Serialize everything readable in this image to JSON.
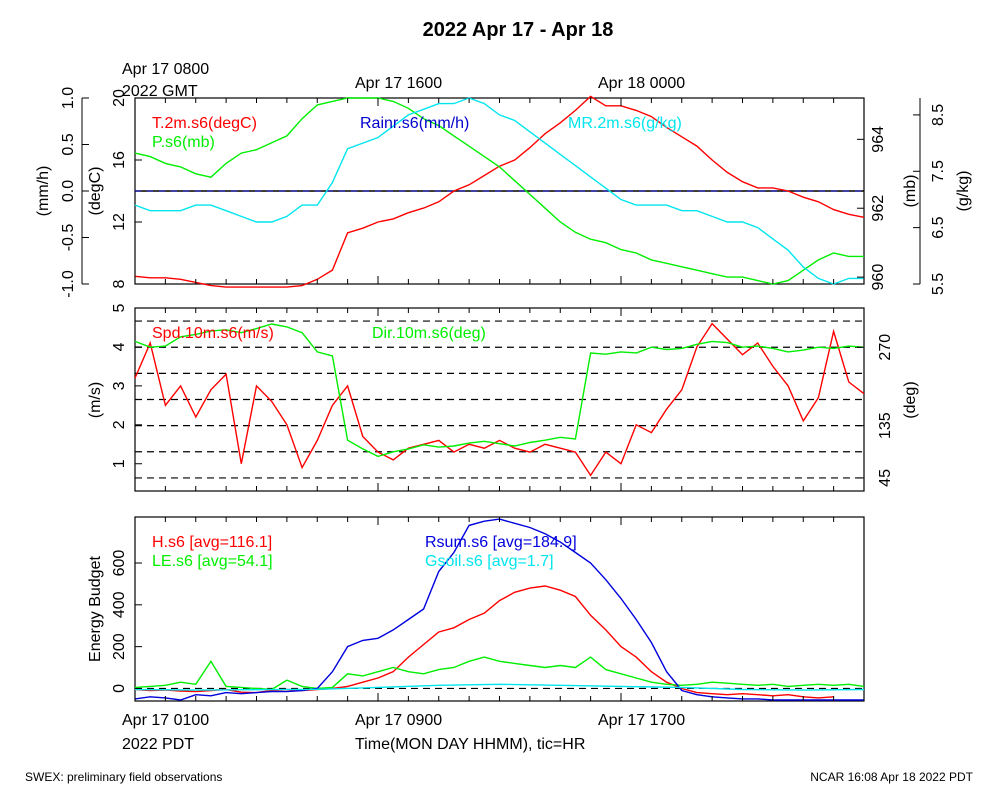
{
  "page": {
    "title": "2022 Apr 17 - Apr 18",
    "top_time_labels": [
      "Apr 17 0800",
      "2022 GMT",
      "Apr 17 1600",
      "Apr 18 0000"
    ],
    "bottom_time_labels": [
      "Apr 17 0100",
      "2022 PDT",
      "Apr 17 0900",
      "Apr 17 1700"
    ],
    "x_axis_title": "Time(MON DAY HHMM), tic=HR",
    "footer_left": "SWEX: preliminary field observations",
    "footer_right": "NCAR 16:08 Apr 18 2022 PDT"
  },
  "chart_data": [
    {
      "type": "line",
      "panel": "meteorology",
      "x_unit": "hours since Apr 17 0100 PDT",
      "xlim": [
        0,
        24
      ],
      "axes": {
        "rain": {
          "label": "(mm/h)",
          "ticks": [
            "-1.0",
            "-0.5",
            "0.0",
            "0.5",
            "1.0"
          ],
          "ylim": [
            -1.0,
            1.0
          ]
        },
        "temp": {
          "label": "(degC)",
          "ticks": [
            "8",
            "12",
            "16",
            "20"
          ],
          "ylim": [
            8,
            20
          ]
        },
        "pres": {
          "label": "(mb)",
          "ticks": [
            "960",
            "962",
            "964"
          ],
          "ylim": [
            959.8,
            965.2
          ]
        },
        "mr": {
          "label": "(g/kg)",
          "ticks": [
            "5.5",
            "6.5",
            "7.5",
            "8.5"
          ],
          "ylim": [
            5.5,
            8.8
          ]
        }
      },
      "series": [
        {
          "name": "T.2m.s6(degC)",
          "color": "#ff0000",
          "axis": "temp",
          "x": [
            0,
            0.5,
            1,
            1.5,
            2,
            2.5,
            3,
            3.5,
            4,
            4.5,
            5,
            5.5,
            6,
            6.5,
            7,
            7.5,
            8,
            8.5,
            9,
            9.5,
            10,
            10.5,
            11,
            11.5,
            12,
            12.5,
            13,
            13.5,
            14,
            14.5,
            15,
            15.5,
            16,
            16.5,
            17,
            17.5,
            18,
            18.5,
            19,
            19.5,
            20,
            20.5,
            21,
            21.5,
            22,
            22.5,
            23,
            23.5,
            24
          ],
          "values": [
            8.5,
            8.4,
            8.4,
            8.3,
            8.1,
            7.9,
            7.8,
            7.8,
            7.8,
            7.8,
            7.8,
            7.9,
            8.3,
            8.9,
            11.3,
            11.6,
            12.0,
            12.2,
            12.6,
            12.9,
            13.3,
            14.0,
            14.4,
            15.0,
            15.6,
            16.0,
            16.8,
            17.7,
            18.4,
            19.2,
            20.1,
            19.5,
            19.5,
            19.2,
            18.8,
            18.1,
            17.5,
            16.9,
            16.0,
            15.2,
            14.6,
            14.2,
            14.2,
            14.0,
            13.6,
            13.3,
            12.8,
            12.5,
            12.3
          ]
        },
        {
          "name": "P.s6(mb)",
          "color": "#00ee00",
          "axis": "pres",
          "x": [
            0,
            0.5,
            1,
            1.5,
            2,
            2.5,
            3,
            3.5,
            4,
            4.5,
            5,
            5.5,
            6,
            6.5,
            7,
            7.5,
            8,
            8.5,
            9,
            9.5,
            10,
            10.5,
            11,
            11.5,
            12,
            12.5,
            13,
            13.5,
            14,
            14.5,
            15,
            15.5,
            16,
            16.5,
            17,
            17.5,
            18,
            18.5,
            19,
            19.5,
            20,
            20.5,
            21,
            21.5,
            22,
            22.5,
            23,
            23.5,
            24
          ],
          "values": [
            963.6,
            963.5,
            963.3,
            963.2,
            963.0,
            962.9,
            963.3,
            963.6,
            963.7,
            963.9,
            964.1,
            964.6,
            965.0,
            965.1,
            965.2,
            965.2,
            965.2,
            965.1,
            964.9,
            964.6,
            964.4,
            964.1,
            963.8,
            963.5,
            963.2,
            962.8,
            962.4,
            962.0,
            961.6,
            961.3,
            961.1,
            961.0,
            960.8,
            960.7,
            960.5,
            960.4,
            960.3,
            960.2,
            960.1,
            960.0,
            960.0,
            959.9,
            959.8,
            959.9,
            960.2,
            960.5,
            960.7,
            960.6,
            960.6
          ]
        },
        {
          "name": "MR.2m.s6(g/kg)",
          "color": "#00e5ee",
          "axis": "mr",
          "x": [
            0,
            0.5,
            1,
            1.5,
            2,
            2.5,
            3,
            3.5,
            4,
            4.5,
            5,
            5.5,
            6,
            6.5,
            7,
            7.5,
            8,
            8.5,
            9,
            9.5,
            10,
            10.5,
            11,
            11.5,
            12,
            12.5,
            13,
            13.5,
            14,
            14.5,
            15,
            15.5,
            16,
            16.5,
            17,
            17.5,
            18,
            18.5,
            19,
            19.5,
            20,
            20.5,
            21,
            21.5,
            22,
            22.5,
            23,
            23.5,
            24
          ],
          "values": [
            6.9,
            6.8,
            6.8,
            6.8,
            6.9,
            6.9,
            6.8,
            6.7,
            6.6,
            6.6,
            6.7,
            6.9,
            6.9,
            7.3,
            7.9,
            8.0,
            8.1,
            8.3,
            8.5,
            8.6,
            8.7,
            8.7,
            8.8,
            8.7,
            8.5,
            8.4,
            8.2,
            8.0,
            7.8,
            7.6,
            7.4,
            7.2,
            7.0,
            6.9,
            6.9,
            6.9,
            6.8,
            6.8,
            6.7,
            6.6,
            6.6,
            6.5,
            6.3,
            6.1,
            5.8,
            5.6,
            5.5,
            5.6,
            5.6
          ]
        },
        {
          "name": "Rainr.s6(mm/h)",
          "color": "#0000cc",
          "axis": "rain",
          "x": [
            0,
            24
          ],
          "values": [
            0,
            0
          ]
        }
      ]
    },
    {
      "type": "line",
      "panel": "wind",
      "x_unit": "hours since Apr 17 0100 PDT",
      "xlim": [
        0,
        24
      ],
      "axes": {
        "spd": {
          "label": "(m/s)",
          "ticks": [
            "1",
            "2",
            "3",
            "4",
            "5"
          ],
          "ylim": [
            0.3,
            5.0
          ]
        },
        "dir": {
          "label": "(deg)",
          "ticks": [
            "45",
            "135",
            "270"
          ],
          "ylim": [
            22.5,
            337.5
          ]
        }
      },
      "reference_lines_deg": [
        45,
        90,
        135,
        180,
        225,
        270,
        315
      ],
      "series": [
        {
          "name": "Spd.10m.s6(m/s)",
          "color": "#ff0000",
          "axis": "spd",
          "x": [
            0,
            0.5,
            1,
            1.5,
            2,
            2.5,
            3,
            3.5,
            4,
            4.5,
            5,
            5.5,
            6,
            6.5,
            7,
            7.5,
            8,
            8.5,
            9,
            9.5,
            10,
            10.5,
            11,
            11.5,
            12,
            12.5,
            13,
            13.5,
            14,
            14.5,
            15,
            15.5,
            16,
            16.5,
            17,
            17.5,
            18,
            18.5,
            19,
            19.5,
            20,
            20.5,
            21,
            21.5,
            22,
            22.5,
            23,
            23.5,
            24
          ],
          "values": [
            3.2,
            4.1,
            2.5,
            3.0,
            2.2,
            2.9,
            3.3,
            1.0,
            3.0,
            2.6,
            2.0,
            0.9,
            1.6,
            2.5,
            3.0,
            1.7,
            1.3,
            1.1,
            1.4,
            1.5,
            1.6,
            1.3,
            1.5,
            1.4,
            1.6,
            1.4,
            1.3,
            1.5,
            1.4,
            1.3,
            0.7,
            1.3,
            1.0,
            2.0,
            1.8,
            2.4,
            2.9,
            4.0,
            4.6,
            4.2,
            3.8,
            4.1,
            3.5,
            3.0,
            2.1,
            2.7,
            4.4,
            3.1,
            2.8
          ]
        },
        {
          "name": "Dir.10m.s6(deg)",
          "color": "#00ee00",
          "axis": "dir",
          "x": [
            0,
            0.5,
            1,
            1.5,
            2,
            2.5,
            3,
            3.5,
            4,
            4.5,
            5,
            5.5,
            6,
            6.5,
            7,
            7.5,
            8,
            8.5,
            9,
            9.5,
            10,
            10.5,
            11,
            11.5,
            12,
            12.5,
            13,
            13.5,
            14,
            14.5,
            15,
            15.5,
            16,
            16.5,
            17,
            17.5,
            18,
            18.5,
            19,
            19.5,
            20,
            20.5,
            21,
            21.5,
            22,
            22.5,
            23,
            23.5,
            24
          ],
          "values": [
            280,
            270,
            272,
            288,
            292,
            298,
            300,
            295,
            302,
            310,
            305,
            295,
            262,
            255,
            110,
            95,
            82,
            90,
            95,
            102,
            98,
            100,
            105,
            108,
            104,
            100,
            106,
            110,
            115,
            112,
            260,
            258,
            262,
            260,
            270,
            266,
            268,
            275,
            280,
            278,
            270,
            272,
            268,
            262,
            265,
            270,
            268,
            272,
            270
          ]
        }
      ]
    },
    {
      "type": "line",
      "panel": "energy",
      "x_unit": "hours since Apr 17 0100 PDT",
      "xlim": [
        0,
        24
      ],
      "ylabel": "Energy Budget",
      "y_ticks": [
        "0",
        "200",
        "400",
        "600"
      ],
      "ylim": [
        -60,
        820
      ],
      "series": [
        {
          "name": "H.s6",
          "legend": "H.s6 [avg=116.1]",
          "color": "#ff0000",
          "x": [
            0,
            0.5,
            1,
            1.5,
            2,
            2.5,
            3,
            3.5,
            4,
            4.5,
            5,
            5.5,
            6,
            6.5,
            7,
            7.5,
            8,
            8.5,
            9,
            9.5,
            10,
            10.5,
            11,
            11.5,
            12,
            12.5,
            13,
            13.5,
            14,
            14.5,
            15,
            15.5,
            16,
            16.5,
            17,
            17.5,
            18,
            18.5,
            19,
            19.5,
            20,
            20.5,
            21,
            21.5,
            22,
            22.5,
            23
          ],
          "values": [
            -5,
            -10,
            -8,
            -12,
            -15,
            -10,
            -5,
            -18,
            -20,
            -10,
            -5,
            -10,
            -5,
            0,
            10,
            30,
            50,
            80,
            150,
            210,
            270,
            290,
            330,
            360,
            420,
            460,
            480,
            490,
            470,
            440,
            350,
            280,
            200,
            150,
            80,
            30,
            0,
            -20,
            -25,
            -30,
            -25,
            -30,
            -35,
            -30,
            -40,
            -45,
            -40
          ]
        },
        {
          "name": "LE.s6",
          "legend": "LE.s6 [avg=54.1]",
          "color": "#00ee00",
          "x": [
            0,
            0.5,
            1,
            1.5,
            2,
            2.5,
            3,
            3.5,
            4,
            4.5,
            5,
            5.5,
            6,
            6.5,
            7,
            7.5,
            8,
            8.5,
            9,
            9.5,
            10,
            10.5,
            11,
            11.5,
            12,
            12.5,
            13,
            13.5,
            14,
            14.5,
            15,
            15.5,
            16,
            16.5,
            17,
            17.5,
            18,
            18.5,
            19,
            19.5,
            20,
            20.5,
            21,
            21.5,
            22,
            22.5,
            23,
            23.5,
            24
          ],
          "values": [
            5,
            10,
            15,
            30,
            20,
            130,
            10,
            5,
            0,
            -5,
            40,
            10,
            0,
            5,
            70,
            60,
            80,
            100,
            80,
            70,
            90,
            100,
            130,
            150,
            130,
            120,
            110,
            100,
            110,
            100,
            150,
            90,
            70,
            50,
            30,
            20,
            15,
            20,
            30,
            25,
            20,
            15,
            20,
            10,
            15,
            20,
            15,
            20,
            10
          ]
        },
        {
          "name": "Rsum.s6",
          "legend": "Rsum.s6 [avg=184.9]",
          "color": "#0000dd",
          "x": [
            0,
            0.5,
            1,
            1.5,
            2,
            2.5,
            3,
            3.5,
            4,
            4.5,
            5,
            5.5,
            6,
            6.5,
            7,
            7.5,
            8,
            8.5,
            9,
            9.5,
            10,
            10.5,
            11,
            11.5,
            12,
            12.5,
            13,
            13.5,
            14,
            14.5,
            15,
            15.5,
            16,
            16.5,
            17,
            17.5,
            18,
            18.5,
            19,
            19.5,
            20,
            20.5,
            21,
            21.5,
            22,
            22.5,
            23,
            23.5,
            24
          ],
          "values": [
            -50,
            -40,
            -45,
            -55,
            -30,
            -35,
            -20,
            -25,
            -20,
            -15,
            -15,
            -10,
            0,
            80,
            200,
            230,
            240,
            280,
            330,
            380,
            560,
            650,
            780,
            800,
            810,
            790,
            770,
            740,
            700,
            650,
            600,
            520,
            430,
            330,
            220,
            80,
            -10,
            -30,
            -40,
            -45,
            -50,
            -50,
            -55,
            -55,
            -55,
            -55,
            -55,
            -55,
            -55
          ]
        },
        {
          "name": "Gsoil.s6",
          "legend": "Gsoil.s6 [avg=1.7]",
          "color": "#00e5ee",
          "x": [
            0,
            2,
            4,
            6,
            8,
            10,
            12,
            14,
            16,
            18,
            20,
            22,
            24
          ],
          "values": [
            -5,
            -8,
            -6,
            -4,
            5,
            15,
            20,
            15,
            10,
            5,
            -5,
            -8,
            -5
          ]
        }
      ]
    }
  ]
}
